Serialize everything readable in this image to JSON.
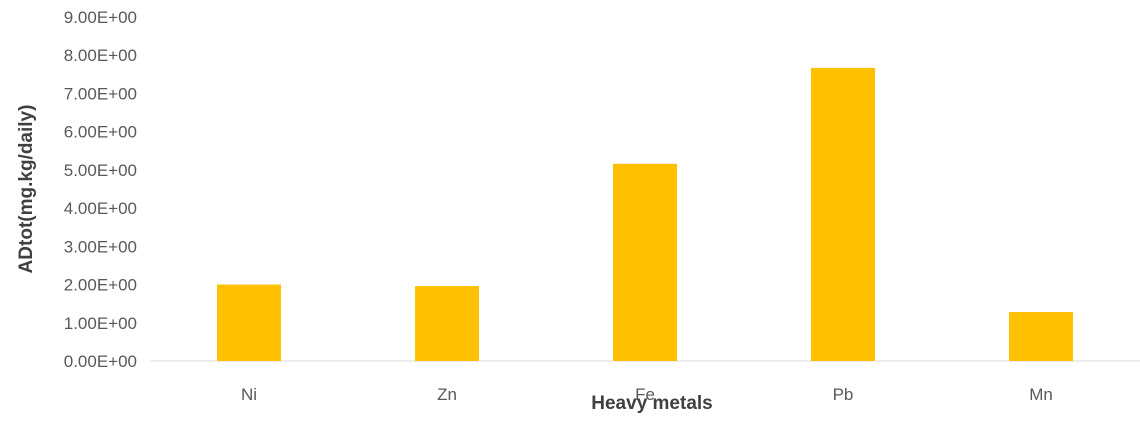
{
  "chart_data": {
    "type": "bar",
    "title": "",
    "categories": [
      "Ni",
      "Zn",
      "Fe",
      "Pb",
      "Mn"
    ],
    "values": [
      2.0,
      1.96,
      5.16,
      7.67,
      1.28
    ],
    "xlabel": "Heavy metals",
    "ylabel": "ADtot(mg.kg/daily)",
    "ylim": [
      0,
      9
    ],
    "yticks": [
      0,
      1,
      2,
      3,
      4,
      5,
      6,
      7,
      8,
      9
    ],
    "ytick_labels": [
      "0.00E+00",
      "1.00E+00",
      "2.00E+00",
      "3.00E+00",
      "4.00E+00",
      "5.00E+00",
      "6.00E+00",
      "7.00E+00",
      "8.00E+00",
      "9.00E+00"
    ],
    "grid": false,
    "legend": "none",
    "bar_color": "#FFC000",
    "axis_color": "#D9D9D9"
  }
}
